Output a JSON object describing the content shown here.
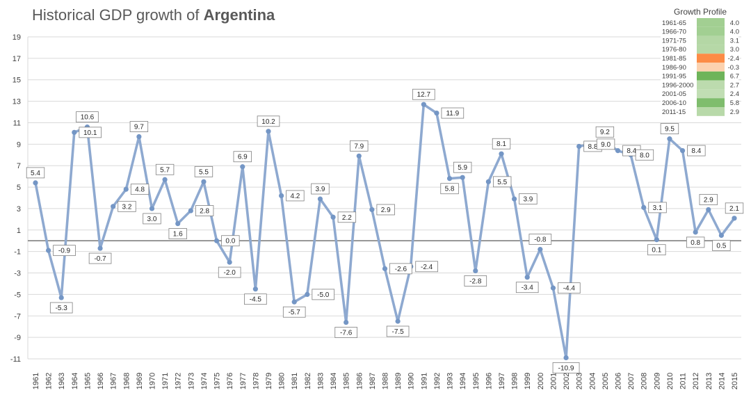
{
  "title": {
    "prefix": "Historical GDP growth of",
    "country": "Argentina"
  },
  "colors": {
    "line": "#8EA9D0",
    "point": "#7496C5",
    "zero_line": "#7F7F7F",
    "grid": "#D9D9D9",
    "label_border": "#7F7F7F"
  },
  "chart_data": {
    "type": "line",
    "title": "Historical GDP growth of Argentina",
    "xlabel": "",
    "ylabel": "",
    "ylim": [
      -11,
      19
    ],
    "yticks": [
      "19",
      "17",
      "15",
      "13",
      "11",
      "9",
      "7",
      "5",
      "3",
      "1",
      "-1",
      "-3",
      "-5",
      "-7",
      "-9",
      "-11"
    ],
    "x": [
      "1961",
      "1962",
      "1963",
      "1964",
      "1965",
      "1966",
      "1967",
      "1968",
      "1969",
      "1970",
      "1971",
      "1972",
      "1973",
      "1974",
      "1975",
      "1976",
      "1977",
      "1978",
      "1979",
      "1980",
      "1981",
      "1982",
      "1983",
      "1984",
      "1985",
      "1986",
      "1987",
      "1988",
      "1989",
      "1990",
      "1991",
      "1992",
      "1993",
      "1994",
      "1995",
      "1996",
      "1997",
      "1998",
      "1999",
      "2000",
      "2001",
      "2002",
      "2003",
      "2004",
      "2005",
      "2006",
      "2007",
      "2008",
      "2009",
      "2010",
      "2011",
      "2012",
      "2013",
      "2014",
      "2015"
    ],
    "values": [
      5.4,
      -0.9,
      -5.3,
      10.1,
      10.6,
      -0.7,
      3.2,
      4.8,
      9.7,
      3.0,
      5.7,
      1.6,
      2.8,
      5.5,
      0.0,
      -2.0,
      6.9,
      -4.5,
      10.2,
      4.2,
      -5.7,
      -5.0,
      3.9,
      2.2,
      -7.6,
      7.9,
      2.9,
      -2.6,
      -7.5,
      -2.4,
      12.7,
      11.9,
      5.8,
      5.9,
      -2.8,
      5.5,
      8.1,
      3.9,
      -3.4,
      -0.8,
      -4.4,
      -10.9,
      8.8,
      9.0,
      9.2,
      8.4,
      8.0,
      3.1,
      0.1,
      9.5,
      8.4,
      0.8,
      2.9,
      0.5,
      2.1
    ],
    "data_labels": [
      "5.4",
      "-0.9",
      "-5.3",
      "10.1",
      "10.6",
      "-0.7",
      "3.2",
      "4.8",
      "9.7",
      "3.0",
      "5.7",
      "1.6",
      "2.8",
      "5.5",
      "0.0",
      "-2.0",
      "6.9",
      "-4.5",
      "10.2",
      "4.2",
      "-5.7",
      "-5.0",
      "3.9",
      "2.2",
      "-7.6",
      "7.9",
      "2.9",
      "-2.6",
      "-7.5",
      "-2.4",
      "12.7",
      "11.9",
      "5.8",
      "5.9",
      "-2.8",
      "5.5",
      "8.1",
      "3.9",
      "-3.4",
      "-0.8",
      "-4.4",
      "-10.9",
      "8.8",
      "9.0",
      "9.2",
      "8.4",
      "8.0",
      "3.1",
      "0.1",
      "9.5",
      "8.4",
      "0.8",
      "2.9",
      "0.5",
      "2.1"
    ],
    "growth_profile": {
      "title": "Growth Profile",
      "periods": [
        "1961-65",
        "1966-70",
        "1971-75",
        "1976-80",
        "1981-85",
        "1986-90",
        "1991-95",
        "1996-2000",
        "2001-05",
        "2006-10",
        "2011-15"
      ],
      "values": [
        4.0,
        4.0,
        3.1,
        3.0,
        -2.4,
        -0.3,
        6.7,
        2.7,
        2.4,
        5.8,
        2.9
      ],
      "value_labels": [
        "4.0",
        "4.0",
        "3.1",
        "3.0",
        "-2.4",
        "-0.3",
        "6.7",
        "2.7",
        "2.4",
        "5.8",
        "2.9"
      ]
    }
  }
}
